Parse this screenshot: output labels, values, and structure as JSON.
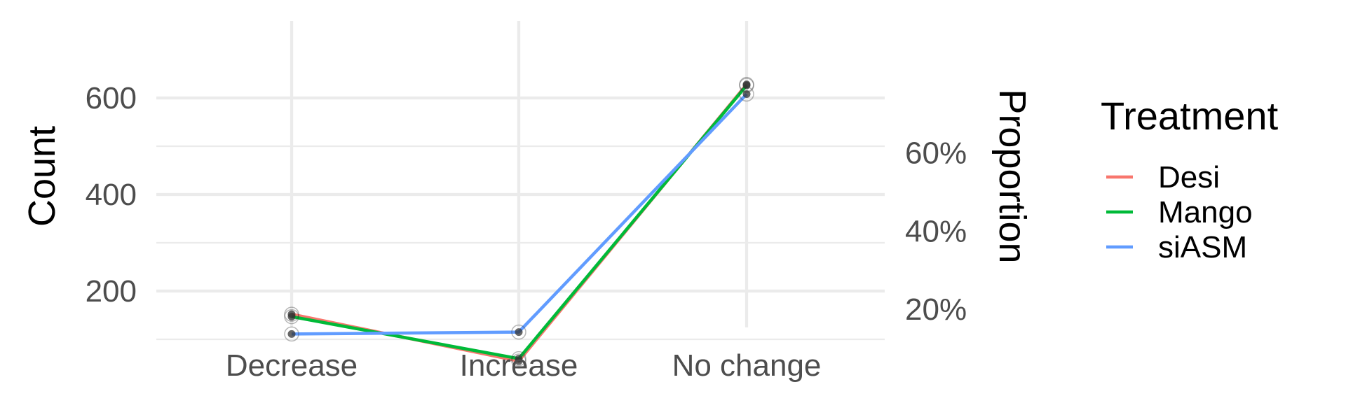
{
  "chart_data": {
    "type": "line",
    "categories": [
      "Decrease",
      "Increase",
      "No change"
    ],
    "ylabel": "Count",
    "y2label": "Proportion",
    "ylim": [
      25,
      660
    ],
    "yticks": [
      200,
      400,
      600
    ],
    "y2": {
      "ticks": [
        0.2,
        0.4,
        0.6
      ],
      "tick_labels": [
        "20%",
        "40%",
        "60%"
      ],
      "count_per_unit": 810
    },
    "grid": true,
    "legend": {
      "title": "Treatment",
      "position": "right"
    },
    "series": [
      {
        "name": "Desi",
        "color": "#F8766D",
        "values": [
          152,
          55,
          628
        ]
      },
      {
        "name": "Mango",
        "color": "#00BA38",
        "values": [
          147,
          60,
          626
        ]
      },
      {
        "name": "siASM",
        "color": "#619CFF",
        "values": [
          111,
          115,
          608
        ]
      }
    ],
    "point_color": "#333333"
  }
}
